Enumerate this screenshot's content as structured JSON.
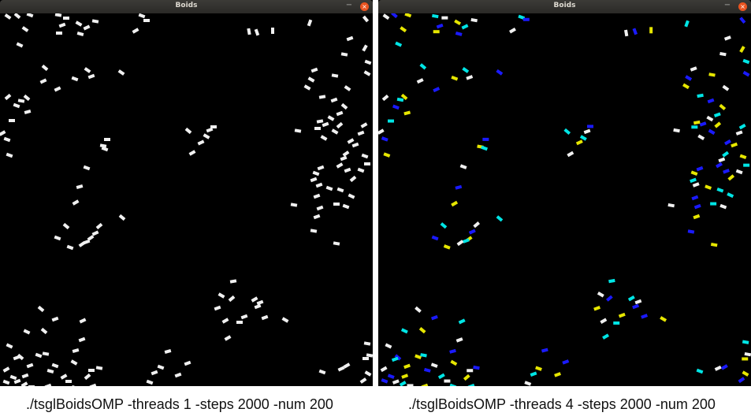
{
  "windows": [
    {
      "title": "Boids",
      "minimize_glyph": "−",
      "close_glyph": "×",
      "caption": "./tsglBoidsOMP -threads 1 -steps 2000 -num 200",
      "boid_colors": [
        "#f0f0f0"
      ]
    },
    {
      "title": "Boids",
      "minimize_glyph": "−",
      "close_glyph": "×",
      "caption": "./tsglBoidsOMP -threads 4 -steps 2000 -num 200",
      "boid_colors": [
        "#f0f0f0",
        "#1a1aff",
        "#e6e600",
        "#00e5e5"
      ]
    }
  ],
  "colors": {
    "canvas_background": "#000000",
    "titlebar": "#3c3b37",
    "close_button": "#e95420"
  }
}
